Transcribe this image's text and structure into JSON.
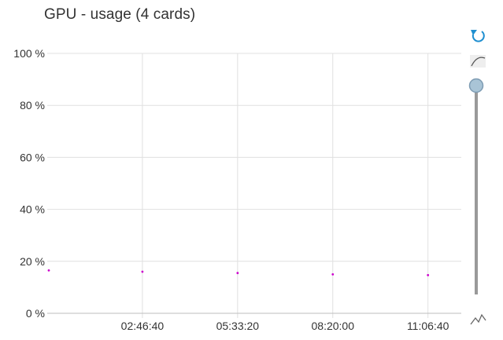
{
  "chart_data": {
    "type": "scatter",
    "title": "GPU - usage (4 cards)",
    "xlabel": "",
    "ylabel": "",
    "y_tick_labels": [
      "0 %",
      "20 %",
      "40 %",
      "60 %",
      "80 %",
      "100 %"
    ],
    "y_tick_values": [
      0,
      20,
      40,
      60,
      80,
      100
    ],
    "ylim": [
      0,
      100
    ],
    "x_tick_labels": [
      "02:46:40",
      "05:33:20",
      "08:20:00",
      "11:06:40"
    ],
    "x_tick_seconds": [
      10000,
      20000,
      30000,
      40000
    ],
    "xlim_seconds": [
      0,
      43500
    ],
    "grid": true,
    "series": [
      {
        "color": "#cc00cc",
        "points": [
          {
            "x": "00:00:00",
            "x_seconds": 0,
            "y": 16.5
          },
          {
            "x": "02:46:40",
            "x_seconds": 10000,
            "y": 16.0
          },
          {
            "x": "05:33:20",
            "x_seconds": 20000,
            "y": 15.5
          },
          {
            "x": "08:20:00",
            "x_seconds": 30000,
            "y": 15.0
          },
          {
            "x": "11:06:40",
            "x_seconds": 40000,
            "y": 14.7
          }
        ]
      }
    ]
  },
  "controls": {
    "reset_icon": "refresh-icon",
    "smooth_icon": "curve-icon",
    "slider_value": 0,
    "outlier_icon": "outlier-chart-icon"
  },
  "colors": {
    "grid": "#e0e0e0",
    "series": "#cc00cc",
    "accent": "#1f8fd0",
    "slider_track": "#999999",
    "slider_knob": "#a9c4d6"
  }
}
